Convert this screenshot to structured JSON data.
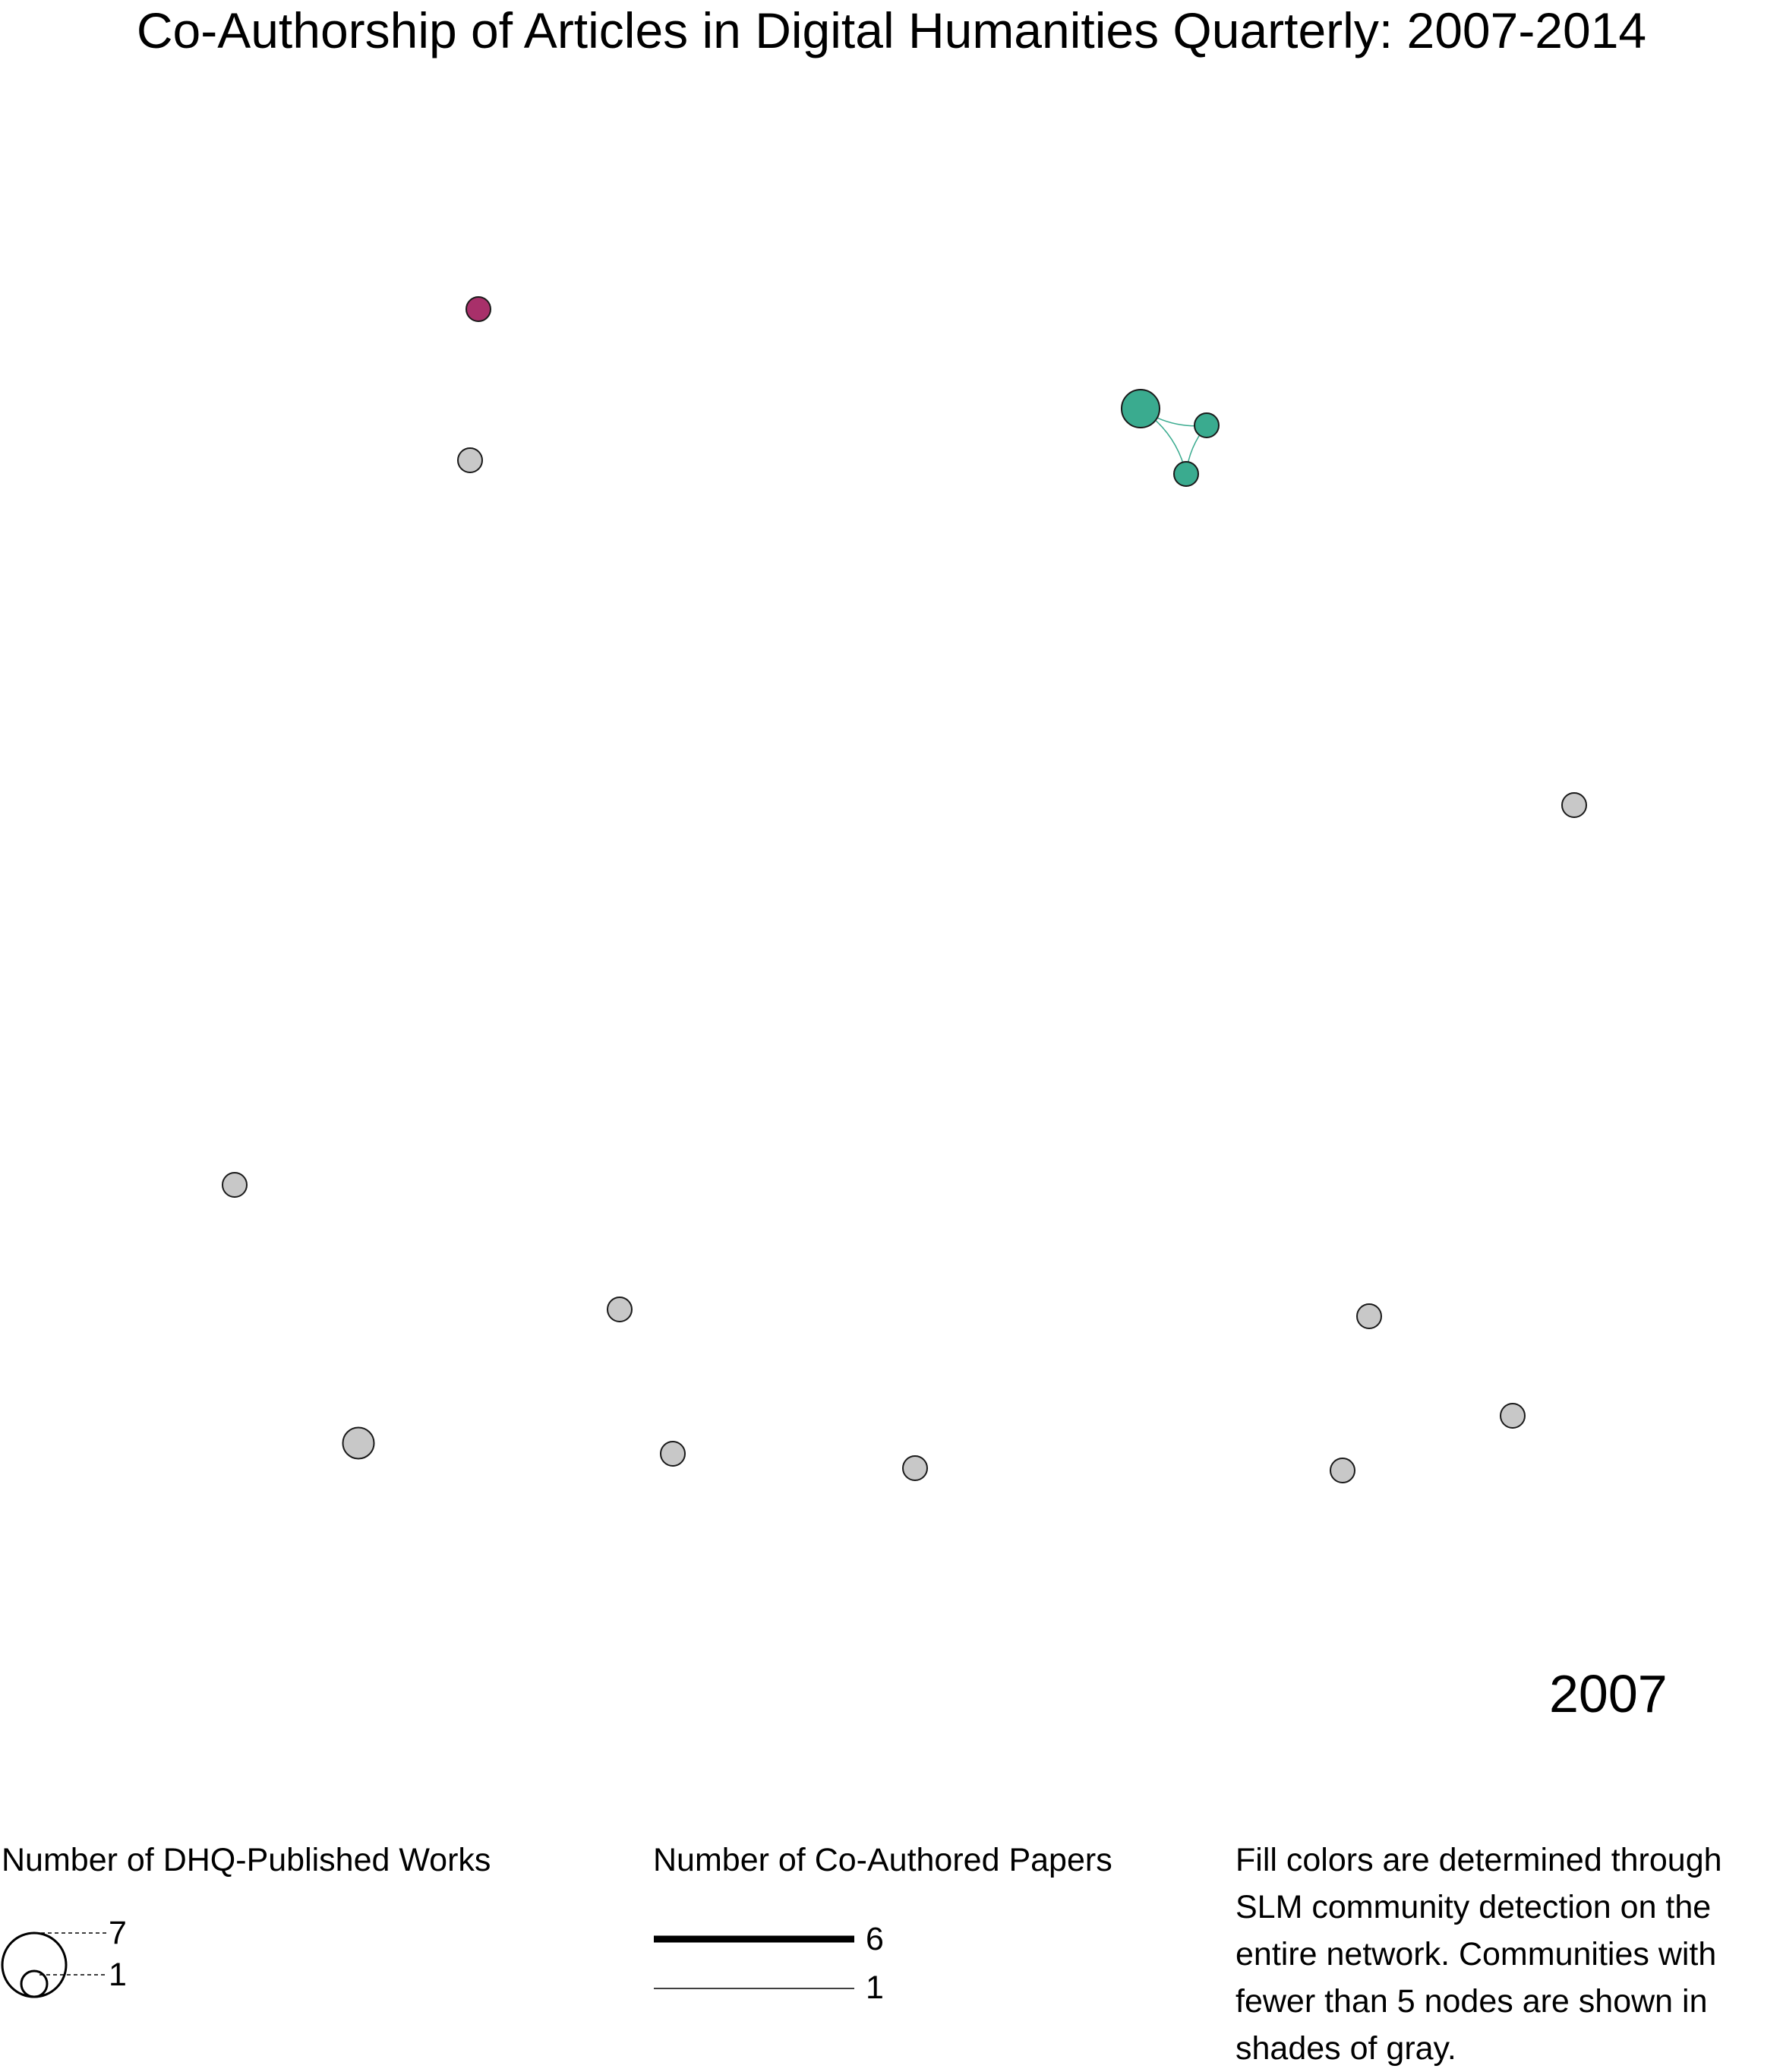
{
  "title": "Co-Authorship of Articles in Digital Humanities Quarterly: 2007-2014",
  "year": "2007",
  "colors": {
    "community_teal": "#3aab8f",
    "community_magenta": "#a8306a",
    "small_community_gray": "#c8c8c8",
    "node_outline": "#1a1a1a"
  },
  "network": {
    "nodes": [
      {
        "id": "magenta-1",
        "works": 1,
        "community": "magenta"
      },
      {
        "id": "gray-1",
        "works": 1,
        "community": "gray"
      },
      {
        "id": "teal-1",
        "works": 3,
        "community": "teal"
      },
      {
        "id": "teal-2",
        "works": 1,
        "community": "teal"
      },
      {
        "id": "teal-3",
        "works": 1,
        "community": "teal"
      },
      {
        "id": "gray-2",
        "works": 1,
        "community": "gray"
      },
      {
        "id": "gray-3",
        "works": 1,
        "community": "gray"
      },
      {
        "id": "gray-4",
        "works": 1,
        "community": "gray"
      },
      {
        "id": "gray-5",
        "works": 2,
        "community": "gray"
      },
      {
        "id": "gray-6",
        "works": 1,
        "community": "gray"
      },
      {
        "id": "gray-7",
        "works": 1,
        "community": "gray"
      },
      {
        "id": "gray-8",
        "works": 1,
        "community": "gray"
      },
      {
        "id": "gray-9",
        "works": 1,
        "community": "gray"
      },
      {
        "id": "gray-10",
        "works": 1,
        "community": "gray"
      }
    ],
    "edges": [
      {
        "source": "teal-1",
        "target": "teal-2",
        "papers": 1
      },
      {
        "source": "teal-1",
        "target": "teal-3",
        "papers": 1
      },
      {
        "source": "teal-2",
        "target": "teal-3",
        "papers": 1
      }
    ]
  },
  "legend": {
    "node_size": {
      "heading": "Number of DHQ-Published Works",
      "max_label": "7",
      "min_label": "1"
    },
    "edge_width": {
      "heading": "Number of Co-Authored Papers",
      "max_label": "6",
      "min_label": "1"
    }
  },
  "note": "Fill colors are determined through SLM community detection on the entire network. Communities with fewer than 5 nodes are shown in shades of gray."
}
